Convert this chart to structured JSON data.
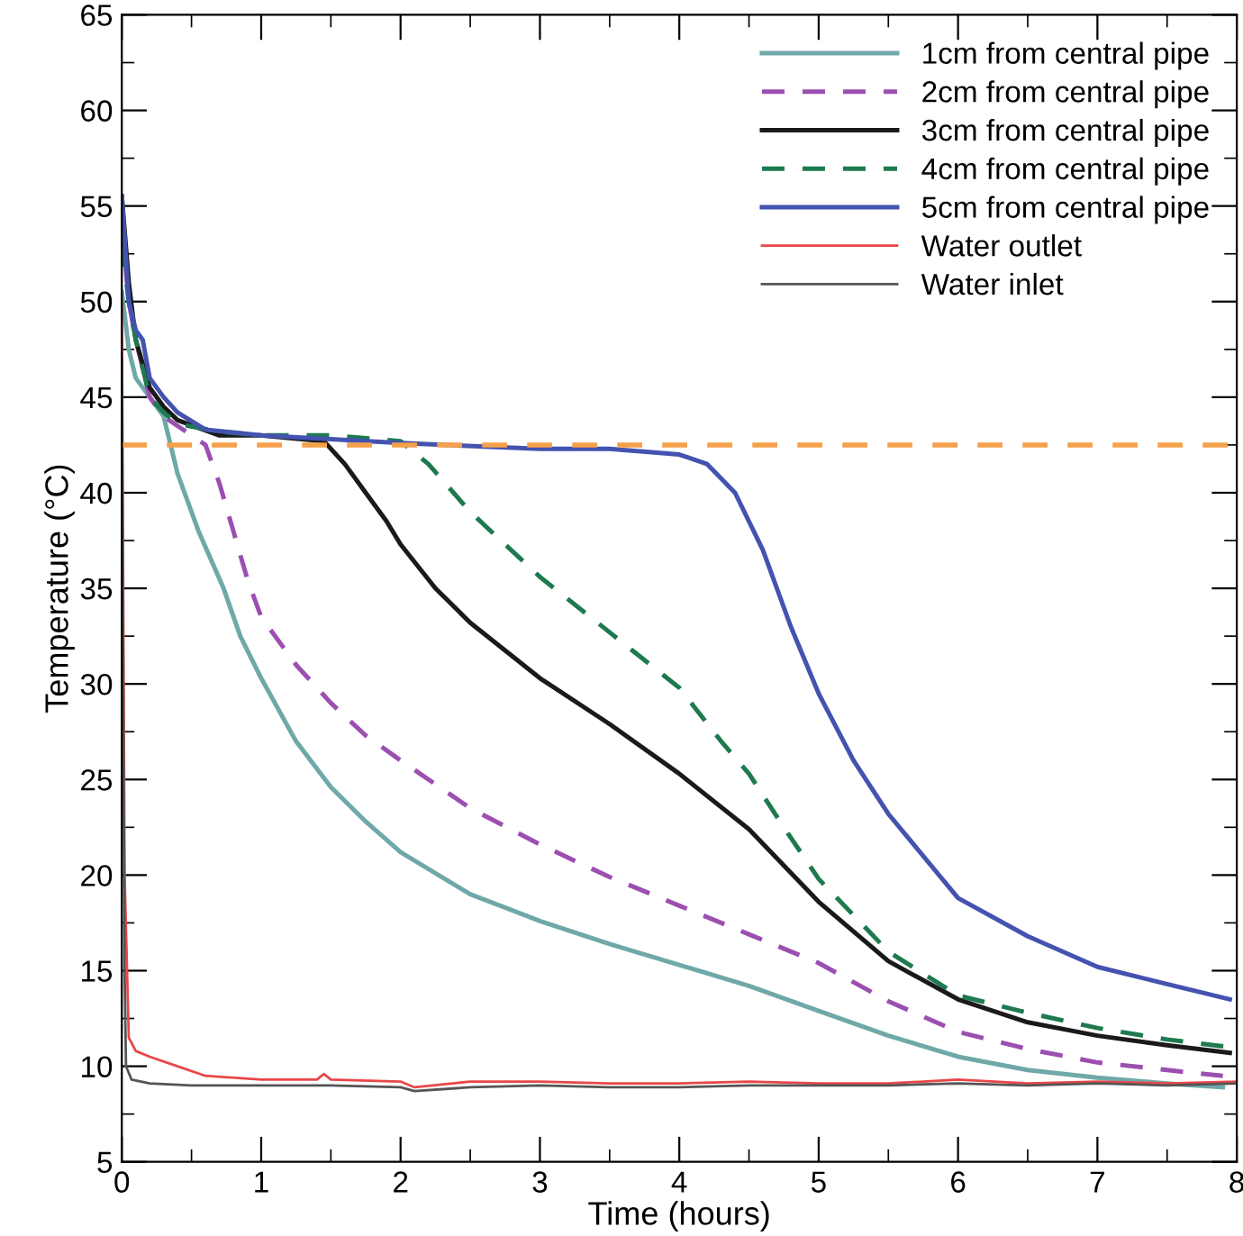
{
  "chart_data": {
    "type": "line",
    "xlabel": "Time (hours)",
    "ylabel": "Temperature (°C)",
    "xlim": [
      0,
      8
    ],
    "ylim": [
      5,
      65
    ],
    "xticks": [
      0,
      1,
      2,
      3,
      4,
      5,
      6,
      7,
      8
    ],
    "yticks": [
      5,
      10,
      15,
      20,
      25,
      30,
      35,
      40,
      45,
      50,
      55,
      60,
      65
    ],
    "grid": false,
    "legend": "top right",
    "marker": "none",
    "ref_lines": [
      {
        "axis": "y",
        "value": 42.5,
        "color": "#f5a04a",
        "line_style": "dashed"
      }
    ],
    "series": [
      {
        "name": "1cm from central pipe",
        "color": "#6fa8a8",
        "line_style": "solid",
        "x": [
          0,
          0.05,
          0.1,
          0.2,
          0.3,
          0.4,
          0.55,
          0.73,
          0.85,
          1,
          1.25,
          1.5,
          1.75,
          2,
          2.5,
          3,
          3.5,
          4,
          4.5,
          5,
          5.5,
          6,
          6.5,
          7,
          7.5,
          7.9
        ],
        "values": [
          50.5,
          47.5,
          46,
          45,
          44,
          41,
          38,
          35,
          32.5,
          30.3,
          27,
          24.6,
          22.8,
          21.2,
          19,
          17.6,
          16.4,
          15.3,
          14.2,
          12.9,
          11.6,
          10.5,
          9.8,
          9.4,
          9.1,
          8.9
        ]
      },
      {
        "name": "2cm from central pipe",
        "color": "#9b4fb0",
        "line_style": "dashed",
        "x": [
          0,
          0.05,
          0.1,
          0.2,
          0.3,
          0.4,
          0.6,
          0.7,
          0.8,
          0.9,
          1,
          1.25,
          1.5,
          1.75,
          2,
          2.5,
          3,
          3.5,
          4,
          4.5,
          5,
          5.5,
          6,
          6.5,
          7,
          7.5,
          7.9
        ],
        "values": [
          54,
          50,
          48,
          45,
          44,
          43.5,
          42.5,
          40.5,
          38,
          35.5,
          33.5,
          31,
          29,
          27.3,
          26,
          23.5,
          21.6,
          19.9,
          18.4,
          16.9,
          15.4,
          13.4,
          11.8,
          10.9,
          10.2,
          9.8,
          9.5
        ]
      },
      {
        "name": "3cm from central pipe",
        "color": "#1a1a1a",
        "line_style": "solid",
        "x": [
          0,
          0.05,
          0.1,
          0.2,
          0.3,
          0.4,
          0.7,
          1,
          1.45,
          1.6,
          1.75,
          1.9,
          2,
          2.25,
          2.5,
          3,
          3.5,
          4,
          4.5,
          5,
          5.5,
          6,
          6.5,
          7,
          7.5,
          7.95
        ],
        "values": [
          55.5,
          51,
          48,
          45.5,
          44.5,
          43.8,
          43,
          43,
          42.7,
          41.5,
          40,
          38.5,
          37.3,
          35,
          33.2,
          30.3,
          27.9,
          25.3,
          22.4,
          18.6,
          15.5,
          13.5,
          12.3,
          11.6,
          11.1,
          10.7
        ]
      },
      {
        "name": "4cm from central pipe",
        "color": "#1e7a4e",
        "line_style": "dashed",
        "x": [
          0,
          0.05,
          0.1,
          0.2,
          0.3,
          0.4,
          0.7,
          1,
          1.5,
          2,
          2.2,
          2.5,
          3,
          3.5,
          4,
          4.3,
          4.5,
          4.75,
          5,
          5.5,
          6,
          6.5,
          7,
          7.5,
          7.95
        ],
        "values": [
          53,
          50,
          48,
          45,
          44.2,
          43.6,
          43.2,
          43,
          43,
          42.7,
          41.5,
          39,
          35.6,
          32.7,
          29.8,
          27,
          25.3,
          22.5,
          19.8,
          16,
          13.7,
          12.8,
          12,
          11.4,
          11
        ]
      },
      {
        "name": "5cm from central pipe",
        "color": "#4452b0",
        "line_style": "solid",
        "x": [
          0,
          0.05,
          0.1,
          0.15,
          0.2,
          0.3,
          0.4,
          0.6,
          1,
          2,
          3,
          3.5,
          4,
          4.2,
          4.4,
          4.6,
          4.8,
          5,
          5.25,
          5.5,
          6,
          6.5,
          7,
          7.5,
          7.95
        ],
        "values": [
          55.5,
          50,
          48.5,
          48,
          46,
          45,
          44.2,
          43.3,
          43,
          42.6,
          42.3,
          42.3,
          42,
          41.5,
          40,
          37,
          33,
          29.5,
          26,
          23.2,
          18.8,
          16.8,
          15.2,
          14.3,
          13.5
        ]
      },
      {
        "name": "Water outlet",
        "color": "#e8474a",
        "line_style": "solid",
        "x": [
          0,
          0.01,
          0.02,
          0.05,
          0.1,
          0.2,
          0.4,
          0.6,
          1,
          1.4,
          1.45,
          1.5,
          2,
          2.1,
          2.5,
          3,
          3.5,
          4,
          4.5,
          5,
          5.5,
          6,
          6.5,
          7,
          7.5,
          8
        ],
        "values": [
          50,
          35,
          20,
          11.5,
          10.8,
          10.5,
          10,
          9.5,
          9.3,
          9.3,
          9.6,
          9.3,
          9.2,
          8.9,
          9.2,
          9.2,
          9.1,
          9.1,
          9.2,
          9.1,
          9.1,
          9.3,
          9.1,
          9.2,
          9.1,
          9.2
        ]
      },
      {
        "name": "Water inlet",
        "color": "#555555",
        "line_style": "solid",
        "x": [
          0,
          0.01,
          0.02,
          0.03,
          0.07,
          0.2,
          0.5,
          1,
          1.5,
          2,
          2.1,
          2.5,
          3,
          3.5,
          4,
          4.5,
          5,
          5.5,
          6,
          6.5,
          7,
          7.5,
          8
        ],
        "values": [
          47,
          30,
          15,
          10,
          9.3,
          9.1,
          9,
          9,
          9,
          8.9,
          8.7,
          8.9,
          9,
          8.9,
          8.9,
          9,
          9,
          9,
          9.1,
          9,
          9.1,
          9,
          9.1
        ]
      }
    ]
  }
}
